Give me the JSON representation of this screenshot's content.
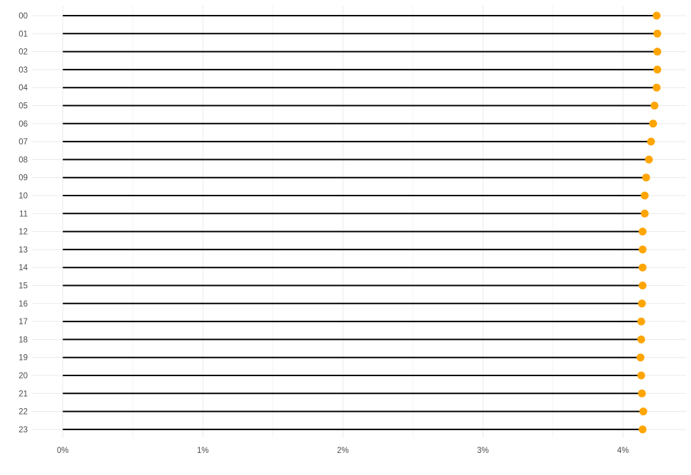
{
  "chart_data": {
    "type": "lollipop",
    "title": "",
    "xlabel": "",
    "ylabel": "",
    "categories": [
      "00",
      "01",
      "02",
      "03",
      "04",
      "05",
      "06",
      "07",
      "08",
      "09",
      "10",
      "11",
      "12",
      "13",
      "14",
      "15",
      "16",
      "17",
      "18",
      "19",
      "20",
      "21",
      "22",
      "23"
    ],
    "values": [
      4.24,
      4.245,
      4.245,
      4.245,
      4.24,
      4.225,
      4.215,
      4.2,
      4.185,
      4.165,
      4.155,
      4.155,
      4.14,
      4.14,
      4.14,
      4.14,
      4.135,
      4.13,
      4.13,
      4.125,
      4.13,
      4.135,
      4.145,
      4.14
    ],
    "xlim": [
      -0.22,
      4.45
    ],
    "xticks": [
      0,
      1,
      2,
      3,
      4
    ],
    "xtick_labels": [
      "0%",
      "1%",
      "2%",
      "3%",
      "4%"
    ],
    "grid": true,
    "stem_color": "#000000",
    "point_color": "#FFA500",
    "grid_color": "#ebebeb"
  }
}
